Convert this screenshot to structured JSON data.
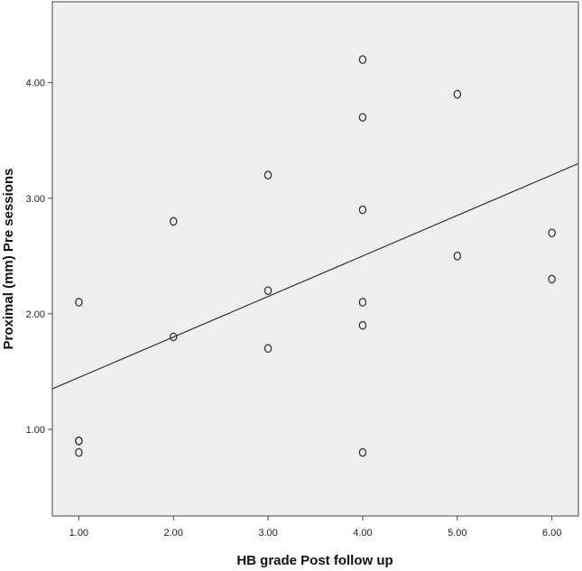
{
  "chart_data": {
    "type": "scatter",
    "title": "",
    "xlabel": "HB grade Post follow up",
    "ylabel": "Proximal (mm) Pre sessions",
    "xlim": [
      0.72,
      6.28
    ],
    "ylim": [
      0.25,
      4.7
    ],
    "x_ticks": [
      1.0,
      2.0,
      3.0,
      4.0,
      5.0,
      6.0
    ],
    "x_tick_labels": [
      "1.00",
      "2.00",
      "3.00",
      "4.00",
      "5.00",
      "6.00"
    ],
    "y_ticks": [
      1.0,
      2.0,
      3.0,
      4.0
    ],
    "y_tick_labels": [
      "1.00",
      "2.00",
      "3.00",
      "4.00"
    ],
    "grid": false,
    "plot_background": "#efefef",
    "marker_color": "#333333",
    "line_color": "#333333",
    "points": [
      {
        "x": 1,
        "y": 2.1
      },
      {
        "x": 1,
        "y": 0.9
      },
      {
        "x": 1,
        "y": 0.9
      },
      {
        "x": 1,
        "y": 0.8
      },
      {
        "x": 2,
        "y": 2.8
      },
      {
        "x": 2,
        "y": 1.8
      },
      {
        "x": 3,
        "y": 3.2
      },
      {
        "x": 3,
        "y": 2.2
      },
      {
        "x": 3,
        "y": 1.7
      },
      {
        "x": 4,
        "y": 4.2
      },
      {
        "x": 4,
        "y": 3.7
      },
      {
        "x": 4,
        "y": 2.9
      },
      {
        "x": 4,
        "y": 2.1
      },
      {
        "x": 4,
        "y": 1.9
      },
      {
        "x": 4,
        "y": 0.8
      },
      {
        "x": 5,
        "y": 3.9
      },
      {
        "x": 5,
        "y": 2.5
      },
      {
        "x": 6,
        "y": 2.7
      },
      {
        "x": 6,
        "y": 2.3
      }
    ],
    "fit_line": {
      "x1": 0.72,
      "y1": 1.35,
      "x2": 6.28,
      "y2": 3.3
    }
  }
}
